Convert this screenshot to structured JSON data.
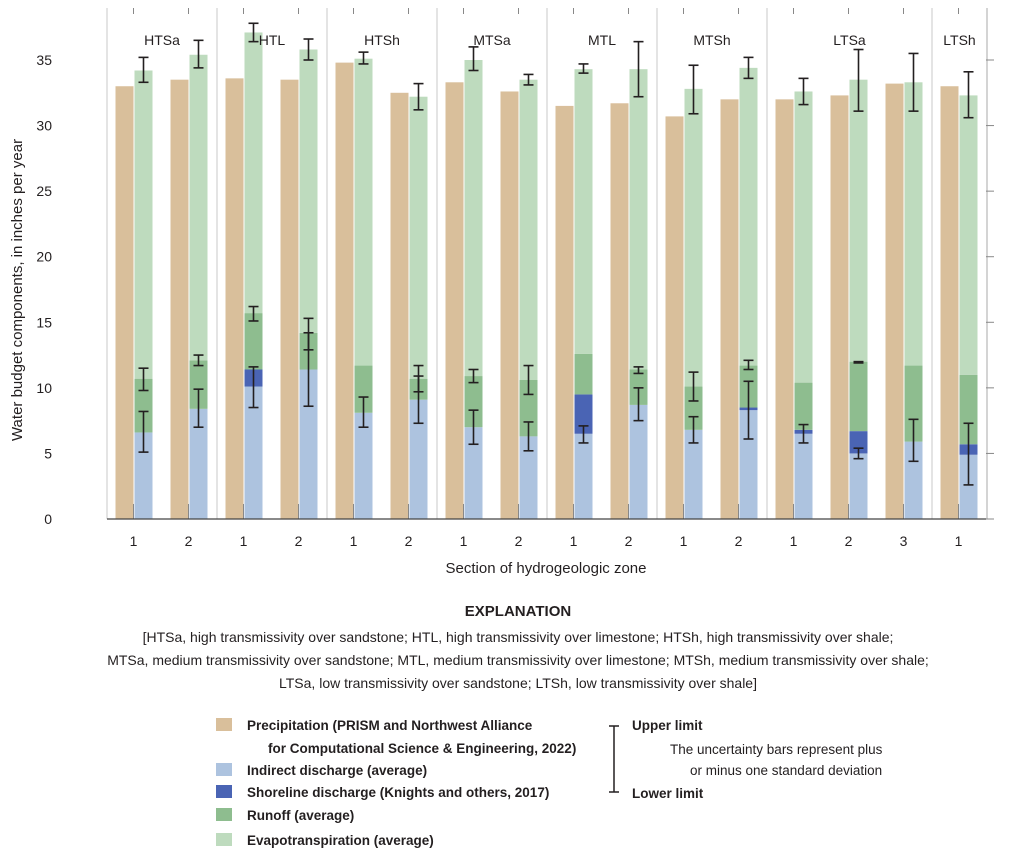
{
  "chart_data": {
    "type": "bar",
    "stacked": true,
    "xlabel": "Section of hydrogeologic zone",
    "ylabel": "Water budget components, in inches per year",
    "ylim": [
      0,
      35
    ],
    "yticks": [
      "0",
      "5",
      "10",
      "15",
      "20",
      "25",
      "30",
      "35"
    ],
    "grid": false,
    "colors": {
      "precipitation": "#d9bf9b",
      "indirect": "#adc3df",
      "shoreline": "#4a64b4",
      "runoff": "#8ebd8f",
      "evapotranspiration": "#bedbbe"
    },
    "zones": [
      {
        "name": "HTSa",
        "sections": [
          {
            "section": "1",
            "precipitation": 33.0,
            "indirect": 6.6,
            "shoreline": 0,
            "runoff": 4.1,
            "evapotranspiration": 23.5,
            "error_bars": [
              [
                5.1,
                8.2
              ],
              [
                9.8,
                11.5
              ],
              [
                33.3,
                35.2
              ]
            ]
          },
          {
            "section": "2",
            "precipitation": 33.5,
            "indirect": 8.4,
            "shoreline": 0,
            "runoff": 3.7,
            "evapotranspiration": 23.3,
            "error_bars": [
              [
                7.0,
                9.9
              ],
              [
                11.7,
                12.5
              ],
              [
                34.4,
                36.5
              ]
            ]
          }
        ]
      },
      {
        "name": "HTL",
        "sections": [
          {
            "section": "1",
            "precipitation": 33.6,
            "indirect": 10.1,
            "shoreline": 1.3,
            "runoff": 4.3,
            "evapotranspiration": 21.4,
            "error_bars": [
              [
                8.5,
                11.6
              ],
              [
                15.1,
                16.2
              ],
              [
                36.4,
                37.8
              ]
            ]
          },
          {
            "section": "2",
            "precipitation": 33.5,
            "indirect": 11.4,
            "shoreline": 0,
            "runoff": 2.8,
            "evapotranspiration": 21.6,
            "error_bars": [
              [
                8.6,
                15.3
              ],
              [
                12.9,
                14.2
              ],
              [
                35.0,
                36.6
              ]
            ]
          }
        ]
      },
      {
        "name": "HTSh",
        "sections": [
          {
            "section": "1",
            "precipitation": 34.8,
            "indirect": 8.1,
            "shoreline": 0,
            "runoff": 3.6,
            "evapotranspiration": 23.4,
            "error_bars": [
              [
                7.0,
                9.3
              ],
              [
                34.7,
                35.6
              ]
            ]
          },
          {
            "section": "2",
            "precipitation": 32.5,
            "indirect": 9.1,
            "shoreline": 0,
            "runoff": 1.6,
            "evapotranspiration": 21.5,
            "error_bars": [
              [
                7.3,
                10.9
              ],
              [
                9.7,
                11.7
              ],
              [
                31.2,
                33.2
              ]
            ]
          }
        ]
      },
      {
        "name": "MTSa",
        "sections": [
          {
            "section": "1",
            "precipitation": 33.3,
            "indirect": 7.0,
            "shoreline": 0,
            "runoff": 3.9,
            "evapotranspiration": 24.1,
            "error_bars": [
              [
                5.7,
                8.3
              ],
              [
                10.4,
                11.4
              ],
              [
                34.2,
                36.0
              ]
            ]
          },
          {
            "section": "2",
            "precipitation": 32.6,
            "indirect": 6.3,
            "shoreline": 0,
            "runoff": 4.3,
            "evapotranspiration": 22.9,
            "error_bars": [
              [
                5.2,
                7.4
              ],
              [
                9.5,
                11.7
              ],
              [
                33.1,
                33.9
              ]
            ]
          }
        ]
      },
      {
        "name": "MTL",
        "sections": [
          {
            "section": "1",
            "precipitation": 31.5,
            "indirect": 6.5,
            "shoreline": 3.0,
            "runoff": 3.1,
            "evapotranspiration": 21.7,
            "error_bars": [
              [
                5.8,
                7.1
              ],
              [
                34.0,
                34.7
              ]
            ]
          },
          {
            "section": "2",
            "precipitation": 31.7,
            "indirect": 8.7,
            "shoreline": 0,
            "runoff": 2.7,
            "evapotranspiration": 22.9,
            "error_bars": [
              [
                7.5,
                10.0
              ],
              [
                11.1,
                11.6
              ],
              [
                32.2,
                36.4
              ]
            ]
          }
        ]
      },
      {
        "name": "MTSh",
        "sections": [
          {
            "section": "1",
            "precipitation": 30.7,
            "indirect": 6.8,
            "shoreline": 0,
            "runoff": 3.3,
            "evapotranspiration": 22.7,
            "error_bars": [
              [
                5.8,
                7.8
              ],
              [
                9.0,
                11.2
              ],
              [
                30.9,
                34.6
              ]
            ]
          },
          {
            "section": "2",
            "precipitation": 32.0,
            "indirect": 8.3,
            "shoreline": 0.2,
            "runoff": 3.2,
            "evapotranspiration": 22.7,
            "error_bars": [
              [
                6.1,
                10.5
              ],
              [
                11.4,
                12.1
              ],
              [
                33.6,
                35.2
              ]
            ]
          }
        ]
      },
      {
        "name": "LTSa",
        "sections": [
          {
            "section": "1",
            "precipitation": 32.0,
            "indirect": 6.5,
            "shoreline": 0.3,
            "runoff": 3.6,
            "evapotranspiration": 22.2,
            "error_bars": [
              [
                5.8,
                7.2
              ],
              [
                31.6,
                33.6
              ]
            ]
          },
          {
            "section": "2",
            "precipitation": 32.3,
            "indirect": 5.0,
            "shoreline": 1.7,
            "runoff": 5.3,
            "evapotranspiration": 21.5,
            "error_bars": [
              [
                4.6,
                5.4
              ],
              [
                11.9,
                12.0
              ],
              [
                31.1,
                35.8
              ]
            ]
          },
          {
            "section": "3",
            "precipitation": 33.2,
            "indirect": 5.9,
            "shoreline": 0,
            "runoff": 5.8,
            "evapotranspiration": 21.6,
            "error_bars": [
              [
                4.4,
                7.6
              ],
              [
                31.1,
                35.5
              ]
            ]
          }
        ]
      },
      {
        "name": "LTSh",
        "sections": [
          {
            "section": "1",
            "precipitation": 33.0,
            "indirect": 4.9,
            "shoreline": 0.8,
            "runoff": 5.3,
            "evapotranspiration": 21.3,
            "error_bars": [
              [
                2.6,
                7.3
              ],
              [
                30.6,
                34.1
              ]
            ]
          }
        ]
      }
    ]
  },
  "explanation": {
    "title": "EXPLANATION",
    "notes": [
      "[HTSa, high transmissivity over sandstone; HTL, high transmissivity over limestone; HTSh, high transmissivity over shale;",
      "MTSa, medium transmissivity over sandstone; MTL, medium transmissivity over limestone; MTSh, medium transmissivity over shale;",
      "LTSa, low transmissivity over sandstone; LTSh, low transmissivity over shale]"
    ],
    "legend": [
      {
        "key": "precipitation",
        "label": "Precipitation (PRISM and Northwest Alliance",
        "label2": "for Computational Science & Engineering, 2022)"
      },
      {
        "key": "indirect",
        "label": "Indirect discharge (average)"
      },
      {
        "key": "shoreline",
        "label": "Shoreline discharge (Knights and others, 2017)"
      },
      {
        "key": "runoff",
        "label": "Runoff (average)"
      },
      {
        "key": "evapotranspiration",
        "label": "Evapotranspiration (average)"
      }
    ],
    "uncertainty": {
      "upper": "Upper limit",
      "lower": "Lower limit",
      "text1": "The uncertainty bars represent plus",
      "text2": "or minus one standard deviation"
    }
  }
}
